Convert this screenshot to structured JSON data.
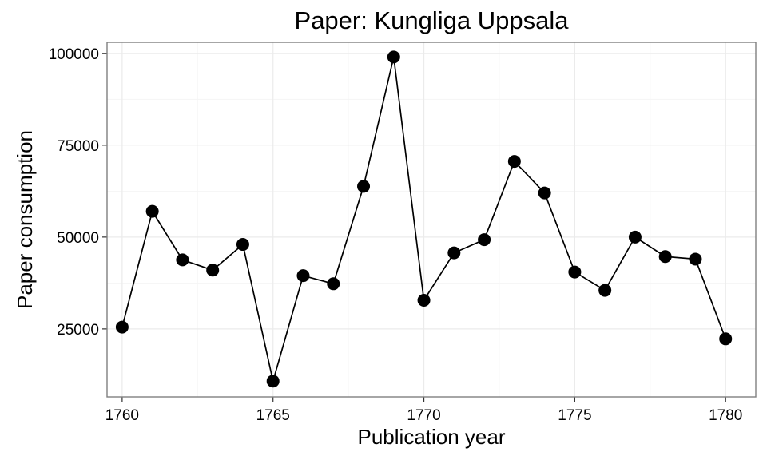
{
  "chart_data": {
    "type": "line",
    "title": "Paper: Kungliga Uppsala",
    "xlabel": "Publication year",
    "ylabel": "Paper consumption",
    "xlim": [
      1759.5,
      1781
    ],
    "ylim": [
      6500,
      103000
    ],
    "x_ticks": [
      1760,
      1765,
      1770,
      1775,
      1780
    ],
    "y_ticks": [
      25000,
      50000,
      75000,
      100000
    ],
    "grid": true,
    "x": [
      1760,
      1761,
      1762,
      1763,
      1764,
      1765,
      1766,
      1767,
      1768,
      1769,
      1770,
      1771,
      1772,
      1773,
      1774,
      1775,
      1776,
      1777,
      1778,
      1779,
      1780
    ],
    "series": [
      {
        "values": [
          25500,
          57000,
          43800,
          41000,
          48000,
          10800,
          39500,
          37300,
          63800,
          99000,
          32800,
          45700,
          49300,
          70600,
          62000,
          40500,
          35500,
          50000,
          44700,
          44000,
          22300
        ]
      }
    ],
    "colors": {
      "line": "#000000",
      "point": "#000000",
      "grid": "#ebebeb",
      "border": "#7f7f7f"
    }
  }
}
